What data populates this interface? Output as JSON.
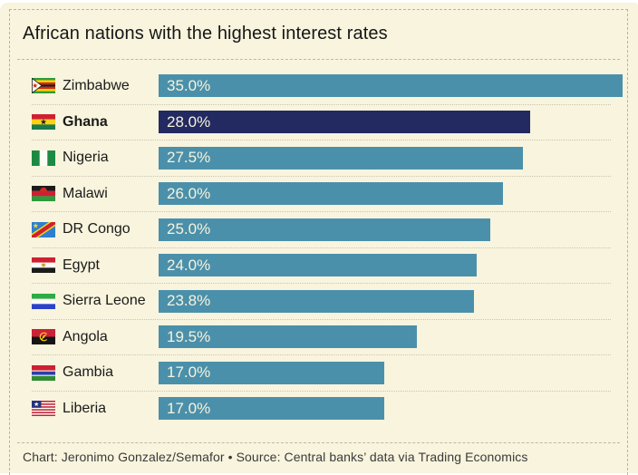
{
  "header": {
    "title": "African nations with the highest interest rates"
  },
  "footer": {
    "credit": "Chart: Jeronimo Gonzalez/Semafor • Source: Central banks’ data via Trading Economics"
  },
  "colors": {
    "panel_background": "#f8f4dd",
    "bar": "#4b90ab",
    "highlight_bar": "#232a61",
    "bar_label_text": "#f7f3dc",
    "label_text": "#1a1a1a",
    "credit_text": "#3a3a3a"
  },
  "chart_data": {
    "type": "bar",
    "orientation": "horizontal",
    "title": "African nations with the highest interest rates",
    "xlabel": "",
    "ylabel": "",
    "xlim": [
      0,
      35
    ],
    "grid": false,
    "legend": false,
    "categories": [
      "Zimbabwe",
      "Ghana",
      "Nigeria",
      "Malawi",
      "DR Congo",
      "Egypt",
      "Sierra Leone",
      "Angola",
      "Gambia",
      "Liberia"
    ],
    "values": [
      35.0,
      28.0,
      27.5,
      26.0,
      25.0,
      24.0,
      23.8,
      19.5,
      17.0,
      17.0
    ],
    "value_labels": [
      "35.0%",
      "28.0%",
      "27.5%",
      "26.0%",
      "25.0%",
      "24.0%",
      "23.8%",
      "19.5%",
      "17.0%",
      "17.0%"
    ],
    "highlighted_category": "Ghana",
    "rows": [
      {
        "country": "Zimbabwe",
        "flag": "zimbabwe-flag-icon",
        "value": 35.0,
        "label": "35.0%",
        "highlighted": false
      },
      {
        "country": "Ghana",
        "flag": "ghana-flag-icon",
        "value": 28.0,
        "label": "28.0%",
        "highlighted": true
      },
      {
        "country": "Nigeria",
        "flag": "nigeria-flag-icon",
        "value": 27.5,
        "label": "27.5%",
        "highlighted": false
      },
      {
        "country": "Malawi",
        "flag": "malawi-flag-icon",
        "value": 26.0,
        "label": "26.0%",
        "highlighted": false
      },
      {
        "country": "DR Congo",
        "flag": "dr-congo-flag-icon",
        "value": 25.0,
        "label": "25.0%",
        "highlighted": false
      },
      {
        "country": "Egypt",
        "flag": "egypt-flag-icon",
        "value": 24.0,
        "label": "24.0%",
        "highlighted": false
      },
      {
        "country": "Sierra Leone",
        "flag": "sierra-leone-flag-icon",
        "value": 23.8,
        "label": "23.8%",
        "highlighted": false
      },
      {
        "country": "Angola",
        "flag": "angola-flag-icon",
        "value": 19.5,
        "label": "19.5%",
        "highlighted": false
      },
      {
        "country": "Gambia",
        "flag": "gambia-flag-icon",
        "value": 17.0,
        "label": "17.0%",
        "highlighted": false
      },
      {
        "country": "Liberia",
        "flag": "liberia-flag-icon",
        "value": 17.0,
        "label": "17.0%",
        "highlighted": false
      }
    ]
  }
}
